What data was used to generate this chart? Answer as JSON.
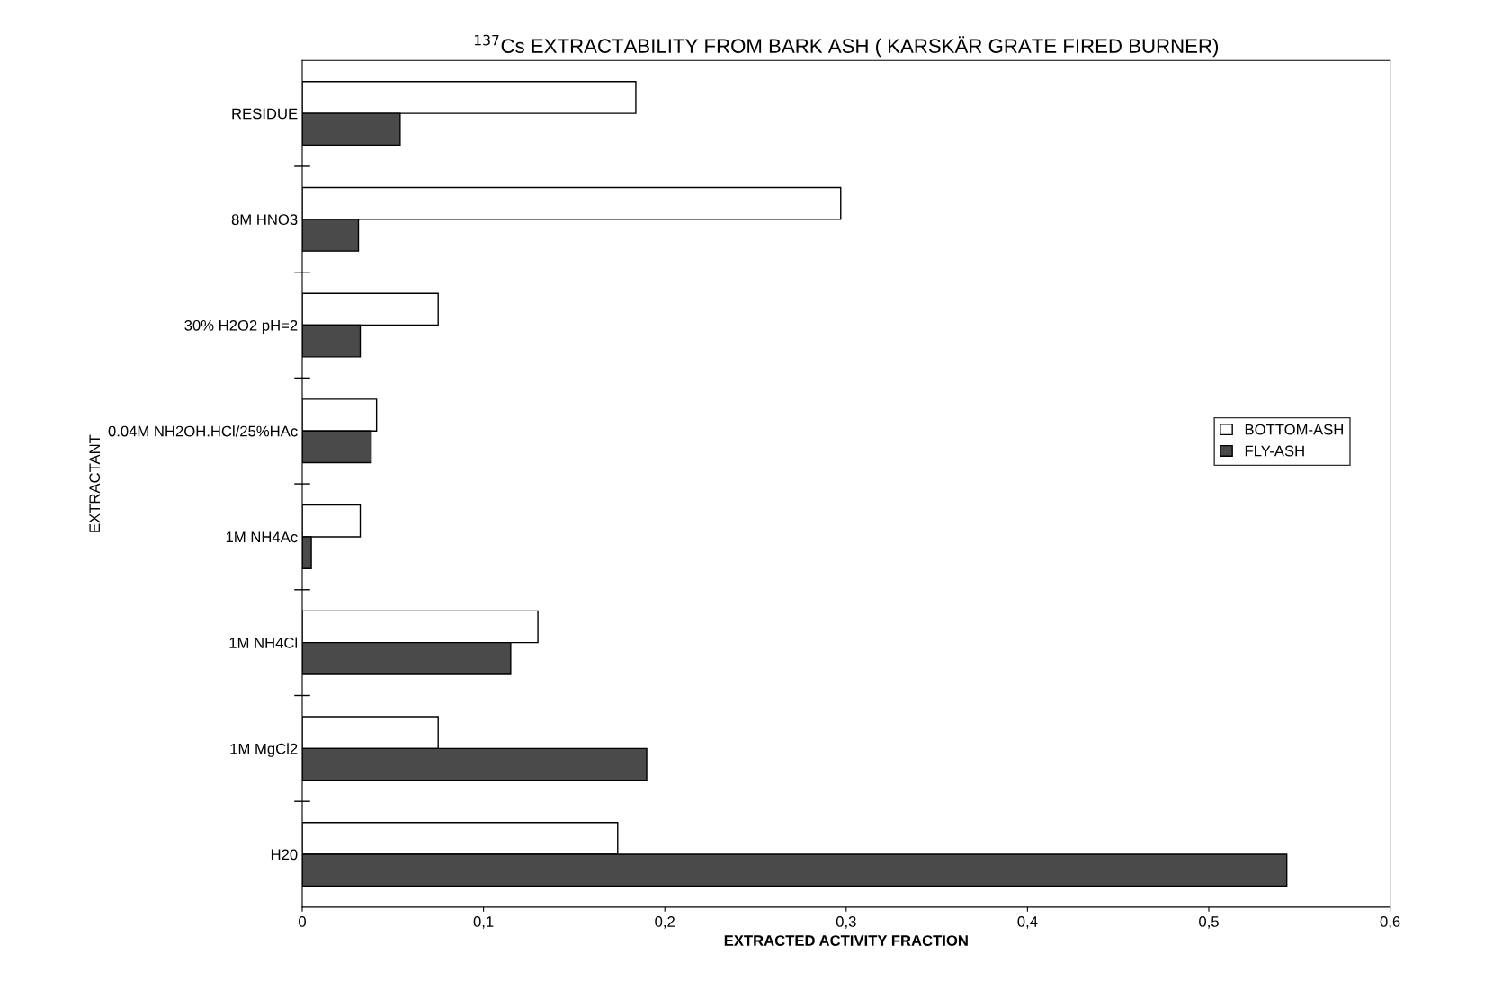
{
  "chart_data": {
    "type": "bar",
    "orientation": "horizontal",
    "title": "$^{137}$Cs EXTRACTABILITY FROM BARK ASH ( KARSKÄR GRATE FIRED BURNER)",
    "xlabel": "EXTRACTED ACTIVITY FRACTION",
    "ylabel": "EXTRACTANT",
    "categories": [
      "RESIDUE",
      "8M HNO3",
      "30% H2O2 pH=2",
      "0.04M NH2OH.HCl/25%HAc",
      "1M NH4Ac",
      "1M NH4Cl",
      "1M MgCl2",
      "H20"
    ],
    "series": [
      {
        "name": "BOTTOM-ASH",
        "color": "#ffffff",
        "values": [
          0.184,
          0.297,
          0.075,
          0.041,
          0.032,
          0.13,
          0.075,
          0.174
        ]
      },
      {
        "name": "FLY-ASH",
        "color": "#4a4a4a",
        "values": [
          0.054,
          0.031,
          0.032,
          0.038,
          0.005,
          0.115,
          0.19,
          0.543
        ]
      }
    ],
    "xlim": [
      0,
      0.6
    ],
    "xticks": [
      0,
      {
        "value": 0.1,
        "label": "0,1"
      },
      {
        "value": 0.2,
        "label": "0,2"
      },
      {
        "value": 0.3,
        "label": "0,3"
      },
      {
        "value": 0.4,
        "label": "0,4"
      },
      {
        "value": 0.5,
        "label": "0,5"
      },
      {
        "value": 0.6,
        "label": "0,6"
      }
    ],
    "grid": false,
    "legend": "right"
  }
}
